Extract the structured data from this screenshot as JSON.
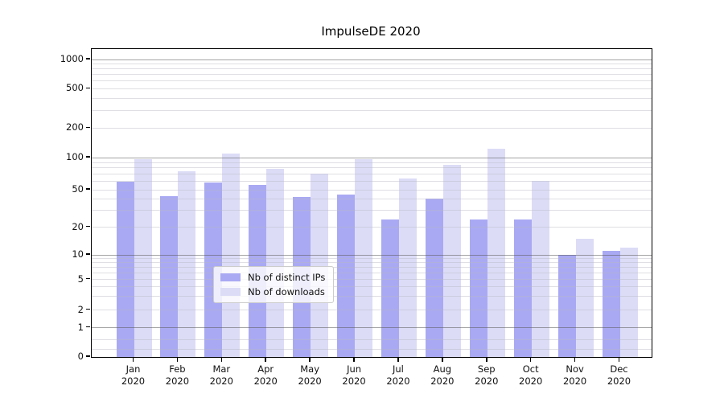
{
  "title": "ImpulseDE 2020",
  "colors": {
    "background": "#ffffff",
    "ips_bar": "#a9a9f3",
    "downloads_bar": "#dcdcf7",
    "axis": "#000000",
    "grid_major": "#5a5a5a",
    "grid_minor": "#c5c5cd"
  },
  "legend": {
    "items": [
      {
        "label": "Nb of distinct IPs",
        "color_key": "ips_bar"
      },
      {
        "label": "Nb of downloads",
        "color_key": "downloads_bar"
      }
    ],
    "position": "lower center"
  },
  "y_axis": {
    "tick_values": [
      0,
      1,
      2,
      5,
      10,
      20,
      50,
      100,
      200,
      500,
      1000
    ],
    "tick_labels": [
      "0",
      "1",
      "2",
      "5",
      "10",
      "20",
      "50",
      "100",
      "200",
      "500",
      "1000"
    ],
    "scale": "log1p"
  },
  "x_axis": {
    "categories": [
      {
        "month": "Jan",
        "year": "2020"
      },
      {
        "month": "Feb",
        "year": "2020"
      },
      {
        "month": "Mar",
        "year": "2020"
      },
      {
        "month": "Apr",
        "year": "2020"
      },
      {
        "month": "May",
        "year": "2020"
      },
      {
        "month": "Jun",
        "year": "2020"
      },
      {
        "month": "Jul",
        "year": "2020"
      },
      {
        "month": "Aug",
        "year": "2020"
      },
      {
        "month": "Sep",
        "year": "2020"
      },
      {
        "month": "Oct",
        "year": "2020"
      },
      {
        "month": "Nov",
        "year": "2020"
      },
      {
        "month": "Dec",
        "year": "2020"
      }
    ]
  },
  "chart_data": {
    "type": "bar",
    "title": "ImpulseDE 2020",
    "categories": [
      "Jan 2020",
      "Feb 2020",
      "Mar 2020",
      "Apr 2020",
      "May 2020",
      "Jun 2020",
      "Jul 2020",
      "Aug 2020",
      "Sep 2020",
      "Oct 2020",
      "Nov 2020",
      "Dec 2020"
    ],
    "series": [
      {
        "name": "Nb of distinct IPs",
        "values": [
          59,
          43,
          58,
          55,
          42,
          44,
          24,
          40,
          24,
          24,
          10,
          11
        ]
      },
      {
        "name": "Nb of downloads",
        "values": [
          96,
          75,
          110,
          78,
          71,
          96,
          64,
          86,
          123,
          60,
          15,
          12
        ]
      }
    ],
    "xlabel": "",
    "ylabel": "",
    "ylim": [
      0,
      1300
    ],
    "yscale": "log1p",
    "grid": "horizontal",
    "legend_position": "lower center",
    "gridline_major_values": [
      1,
      10,
      100,
      1000
    ],
    "gridline_minor_values": [
      0.2,
      0.5,
      2,
      3,
      4,
      5,
      6,
      7,
      8,
      9,
      20,
      30,
      40,
      50,
      60,
      70,
      80,
      90,
      200,
      300,
      400,
      500,
      600,
      700,
      800,
      900
    ]
  }
}
